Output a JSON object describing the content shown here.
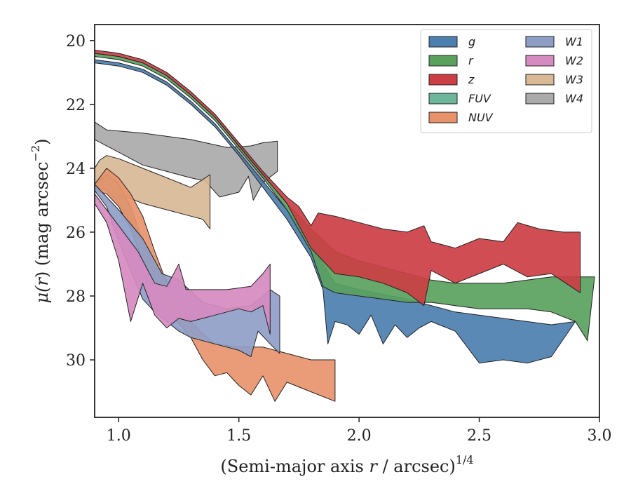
{
  "chart_data": {
    "type": "area",
    "xlabel_main": "(Semi-major axis ",
    "xlabel_var": "r",
    "xlabel_tail": " / arcsec)",
    "xlabel_exp": "1/4",
    "ylabel_main": "μ(",
    "ylabel_var": "r",
    "ylabel_tail": ") (mag arcsec",
    "ylabel_exp": "−2",
    "ylabel_close": ")",
    "xlim": [
      0.9,
      3.0
    ],
    "ylim": [
      31.8,
      19.5
    ],
    "y_inverted": true,
    "xticks": [
      1.0,
      1.5,
      2.0,
      2.5,
      3.0
    ],
    "xtick_labels": [
      "1.0",
      "1.5",
      "2.0",
      "2.5",
      "3.0"
    ],
    "yticks": [
      20,
      22,
      24,
      26,
      28,
      30
    ],
    "ytick_labels": [
      "20",
      "22",
      "24",
      "26",
      "28",
      "30"
    ],
    "grid": false,
    "legend_position": "top-right",
    "legend_columns": 2,
    "series": [
      {
        "name": "W4",
        "color": "#aaaaaa",
        "upper": [
          [
            0.9,
            22.55
          ],
          [
            0.95,
            22.8
          ],
          [
            1.1,
            22.9
          ],
          [
            1.3,
            23.1
          ],
          [
            1.45,
            23.35
          ],
          [
            1.55,
            23.3
          ],
          [
            1.6,
            23.2
          ],
          [
            1.66,
            23.15
          ]
        ],
        "lower": [
          [
            0.9,
            23.1
          ],
          [
            1.0,
            23.5
          ],
          [
            1.1,
            23.9
          ],
          [
            1.2,
            24.1
          ],
          [
            1.3,
            24.3
          ],
          [
            1.36,
            24.4
          ],
          [
            1.42,
            24.9
          ],
          [
            1.5,
            24.75
          ],
          [
            1.54,
            24.25
          ],
          [
            1.56,
            25.0
          ],
          [
            1.6,
            24.45
          ],
          [
            1.66,
            24.1
          ]
        ]
      },
      {
        "name": "W3",
        "color": "#d8b895",
        "upper": [
          [
            0.9,
            24.0
          ],
          [
            0.92,
            23.75
          ],
          [
            0.95,
            23.6
          ],
          [
            1.0,
            23.7
          ],
          [
            1.1,
            24.0
          ],
          [
            1.2,
            24.3
          ],
          [
            1.3,
            24.6
          ],
          [
            1.38,
            24.2
          ]
        ],
        "lower": [
          [
            0.9,
            24.5
          ],
          [
            1.0,
            24.8
          ],
          [
            1.1,
            25.1
          ],
          [
            1.2,
            25.3
          ],
          [
            1.3,
            25.5
          ],
          [
            1.35,
            25.6
          ],
          [
            1.38,
            25.9
          ]
        ]
      },
      {
        "name": "FUV",
        "color": "#6db69b",
        "upper": [
          [
            0.9,
            24.5
          ],
          [
            0.95,
            24.2
          ],
          [
            1.0,
            24.5
          ],
          [
            1.05,
            25.2
          ],
          [
            1.1,
            26.3
          ],
          [
            1.15,
            27.1
          ],
          [
            1.2,
            27.5
          ]
        ],
        "lower": [
          [
            0.9,
            24.6
          ],
          [
            0.95,
            24.7
          ],
          [
            1.0,
            25.1
          ],
          [
            1.05,
            25.7
          ],
          [
            1.1,
            27.0
          ],
          [
            1.12,
            27.6
          ],
          [
            1.17,
            27.8
          ]
        ]
      },
      {
        "name": "NUV",
        "color": "#e8926b",
        "upper": [
          [
            0.9,
            24.5
          ],
          [
            0.95,
            24.0
          ],
          [
            1.0,
            24.3
          ],
          [
            1.05,
            24.8
          ],
          [
            1.1,
            25.5
          ],
          [
            1.15,
            26.6
          ],
          [
            1.2,
            27.6
          ],
          [
            1.3,
            28.8
          ],
          [
            1.35,
            29.2
          ],
          [
            1.4,
            29.5
          ],
          [
            1.5,
            29.6
          ],
          [
            1.6,
            29.6
          ],
          [
            1.7,
            29.8
          ],
          [
            1.8,
            30.0
          ],
          [
            1.9,
            30.0
          ]
        ],
        "lower": [
          [
            0.9,
            24.7
          ],
          [
            0.95,
            24.8
          ],
          [
            1.0,
            25.2
          ],
          [
            1.05,
            25.9
          ],
          [
            1.1,
            26.9
          ],
          [
            1.15,
            27.8
          ],
          [
            1.2,
            28.4
          ],
          [
            1.3,
            29.3
          ],
          [
            1.35,
            30.0
          ],
          [
            1.4,
            30.5
          ],
          [
            1.45,
            30.4
          ],
          [
            1.5,
            30.8
          ],
          [
            1.55,
            31.1
          ],
          [
            1.6,
            30.5
          ],
          [
            1.65,
            31.3
          ],
          [
            1.7,
            30.7
          ],
          [
            1.8,
            31.0
          ],
          [
            1.9,
            31.3
          ]
        ]
      },
      {
        "name": "W1",
        "color": "#8f9ec7",
        "upper": [
          [
            0.9,
            24.5
          ],
          [
            1.0,
            25.3
          ],
          [
            1.1,
            26.2
          ],
          [
            1.18,
            27.3
          ],
          [
            1.25,
            27.5
          ],
          [
            1.35,
            28.2
          ],
          [
            1.45,
            28.4
          ],
          [
            1.55,
            28.3
          ],
          [
            1.6,
            28.0
          ],
          [
            1.63,
            27.8
          ],
          [
            1.67,
            28.0
          ]
        ],
        "lower": [
          [
            0.9,
            24.7
          ],
          [
            0.95,
            25.2
          ],
          [
            1.0,
            26.3
          ],
          [
            1.05,
            27.2
          ],
          [
            1.1,
            28.1
          ],
          [
            1.15,
            28.5
          ],
          [
            1.2,
            28.8
          ],
          [
            1.25,
            29.1
          ],
          [
            1.3,
            29.3
          ],
          [
            1.4,
            29.5
          ],
          [
            1.5,
            29.7
          ],
          [
            1.55,
            29.9
          ],
          [
            1.58,
            29.1
          ],
          [
            1.63,
            29.5
          ],
          [
            1.67,
            29.8
          ]
        ]
      },
      {
        "name": "W2",
        "color": "#d68bc0",
        "upper": [
          [
            0.9,
            24.8
          ],
          [
            1.0,
            25.8
          ],
          [
            1.08,
            26.6
          ],
          [
            1.15,
            27.6
          ],
          [
            1.2,
            27.7
          ],
          [
            1.25,
            27.0
          ],
          [
            1.28,
            27.8
          ],
          [
            1.35,
            27.8
          ],
          [
            1.45,
            27.8
          ],
          [
            1.55,
            27.7
          ],
          [
            1.6,
            27.3
          ],
          [
            1.63,
            27.0
          ]
        ],
        "lower": [
          [
            0.9,
            25.1
          ],
          [
            0.95,
            25.7
          ],
          [
            1.0,
            26.9
          ],
          [
            1.05,
            28.8
          ],
          [
            1.1,
            27.6
          ],
          [
            1.15,
            28.6
          ],
          [
            1.2,
            29.0
          ],
          [
            1.25,
            28.7
          ],
          [
            1.3,
            28.8
          ],
          [
            1.4,
            28.6
          ],
          [
            1.5,
            28.4
          ],
          [
            1.55,
            28.5
          ],
          [
            1.6,
            28.3
          ],
          [
            1.63,
            29.2
          ]
        ]
      },
      {
        "name": "g",
        "color": "#4c7fb0",
        "upper": [
          [
            0.9,
            20.6
          ],
          [
            1.0,
            20.7
          ],
          [
            1.1,
            20.9
          ],
          [
            1.2,
            21.3
          ],
          [
            1.3,
            21.9
          ],
          [
            1.4,
            22.6
          ],
          [
            1.5,
            23.5
          ],
          [
            1.6,
            24.4
          ],
          [
            1.7,
            25.3
          ],
          [
            1.8,
            26.3
          ],
          [
            1.85,
            27.0
          ],
          [
            1.9,
            27.6
          ],
          [
            2.0,
            27.8
          ],
          [
            2.2,
            28.1
          ],
          [
            2.4,
            28.5
          ],
          [
            2.6,
            28.7
          ],
          [
            2.8,
            28.9
          ],
          [
            2.9,
            28.8
          ]
        ],
        "lower": [
          [
            0.9,
            20.7
          ],
          [
            1.0,
            20.8
          ],
          [
            1.1,
            21.0
          ],
          [
            1.2,
            21.4
          ],
          [
            1.3,
            22.0
          ],
          [
            1.4,
            22.7
          ],
          [
            1.5,
            23.6
          ],
          [
            1.6,
            24.6
          ],
          [
            1.7,
            25.6
          ],
          [
            1.8,
            26.8
          ],
          [
            1.85,
            27.8
          ],
          [
            1.87,
            29.5
          ],
          [
            1.9,
            28.8
          ],
          [
            1.95,
            28.9
          ],
          [
            2.0,
            29.2
          ],
          [
            2.05,
            28.6
          ],
          [
            2.1,
            29.5
          ],
          [
            2.15,
            28.9
          ],
          [
            2.2,
            29.3
          ],
          [
            2.25,
            29.0
          ],
          [
            2.3,
            28.8
          ],
          [
            2.4,
            29.1
          ],
          [
            2.5,
            30.1
          ],
          [
            2.6,
            30.0
          ],
          [
            2.7,
            30.1
          ],
          [
            2.8,
            29.9
          ]
        ]
      },
      {
        "name": "r",
        "color": "#5aa15e",
        "upper": [
          [
            0.9,
            20.4
          ],
          [
            1.0,
            20.5
          ],
          [
            1.1,
            20.7
          ],
          [
            1.2,
            21.1
          ],
          [
            1.3,
            21.7
          ],
          [
            1.4,
            22.4
          ],
          [
            1.5,
            23.3
          ],
          [
            1.6,
            24.2
          ],
          [
            1.7,
            25.1
          ],
          [
            1.8,
            25.9
          ],
          [
            1.9,
            26.6
          ],
          [
            2.0,
            26.9
          ],
          [
            2.1,
            27.1
          ],
          [
            2.2,
            27.3
          ],
          [
            2.3,
            27.5
          ],
          [
            2.4,
            27.6
          ],
          [
            2.5,
            27.6
          ],
          [
            2.6,
            27.6
          ],
          [
            2.7,
            27.5
          ],
          [
            2.8,
            27.4
          ],
          [
            2.9,
            27.4
          ],
          [
            2.98,
            27.4
          ]
        ],
        "lower": [
          [
            0.9,
            20.5
          ],
          [
            1.0,
            20.6
          ],
          [
            1.1,
            20.8
          ],
          [
            1.2,
            21.2
          ],
          [
            1.3,
            21.8
          ],
          [
            1.4,
            22.5
          ],
          [
            1.5,
            23.4
          ],
          [
            1.6,
            24.3
          ],
          [
            1.7,
            25.3
          ],
          [
            1.8,
            26.6
          ],
          [
            1.85,
            27.7
          ],
          [
            1.9,
            27.9
          ],
          [
            2.0,
            28.0
          ],
          [
            2.1,
            28.1
          ],
          [
            2.2,
            28.2
          ],
          [
            2.3,
            28.2
          ],
          [
            2.4,
            28.3
          ],
          [
            2.5,
            28.4
          ],
          [
            2.6,
            28.4
          ],
          [
            2.7,
            28.4
          ],
          [
            2.8,
            28.5
          ],
          [
            2.9,
            28.8
          ],
          [
            2.95,
            29.4
          ]
        ]
      },
      {
        "name": "z",
        "color": "#cc3f44",
        "upper": [
          [
            0.9,
            20.3
          ],
          [
            1.0,
            20.4
          ],
          [
            1.1,
            20.6
          ],
          [
            1.2,
            21.0
          ],
          [
            1.3,
            21.6
          ],
          [
            1.4,
            22.3
          ],
          [
            1.5,
            23.2
          ],
          [
            1.6,
            24.1
          ],
          [
            1.7,
            24.9
          ],
          [
            1.75,
            25.2
          ],
          [
            1.8,
            25.8
          ],
          [
            1.83,
            25.4
          ],
          [
            1.9,
            25.5
          ],
          [
            2.0,
            25.7
          ],
          [
            2.1,
            25.9
          ],
          [
            2.2,
            26.0
          ],
          [
            2.27,
            25.8
          ],
          [
            2.3,
            26.3
          ],
          [
            2.4,
            26.5
          ],
          [
            2.5,
            26.2
          ],
          [
            2.6,
            26.3
          ],
          [
            2.66,
            25.7
          ],
          [
            2.75,
            25.9
          ],
          [
            2.85,
            26.0
          ],
          [
            2.92,
            26.0
          ]
        ],
        "lower": [
          [
            0.9,
            20.4
          ],
          [
            1.0,
            20.5
          ],
          [
            1.1,
            20.7
          ],
          [
            1.2,
            21.1
          ],
          [
            1.3,
            21.7
          ],
          [
            1.4,
            22.4
          ],
          [
            1.5,
            23.3
          ],
          [
            1.6,
            24.2
          ],
          [
            1.7,
            25.1
          ],
          [
            1.75,
            25.8
          ],
          [
            1.8,
            26.5
          ],
          [
            1.85,
            26.9
          ],
          [
            1.9,
            27.3
          ],
          [
            2.0,
            27.4
          ],
          [
            2.1,
            27.6
          ],
          [
            2.2,
            27.9
          ],
          [
            2.27,
            28.3
          ],
          [
            2.3,
            27.2
          ],
          [
            2.4,
            27.6
          ],
          [
            2.5,
            27.3
          ],
          [
            2.6,
            27.0
          ],
          [
            2.7,
            27.4
          ],
          [
            2.8,
            27.3
          ],
          [
            2.92,
            27.9
          ]
        ]
      }
    ],
    "legend": [
      {
        "label": "g",
        "color": "#4c7fb0"
      },
      {
        "label": "r",
        "color": "#5aa15e"
      },
      {
        "label": "z",
        "color": "#cc3f44"
      },
      {
        "label": "FUV",
        "color": "#6db69b"
      },
      {
        "label": "NUV",
        "color": "#e8926b"
      },
      {
        "label": "W1",
        "color": "#8f9ec7"
      },
      {
        "label": "W2",
        "color": "#d68bc0"
      },
      {
        "label": "W3",
        "color": "#d8b895"
      },
      {
        "label": "W4",
        "color": "#aaaaaa"
      }
    ]
  }
}
